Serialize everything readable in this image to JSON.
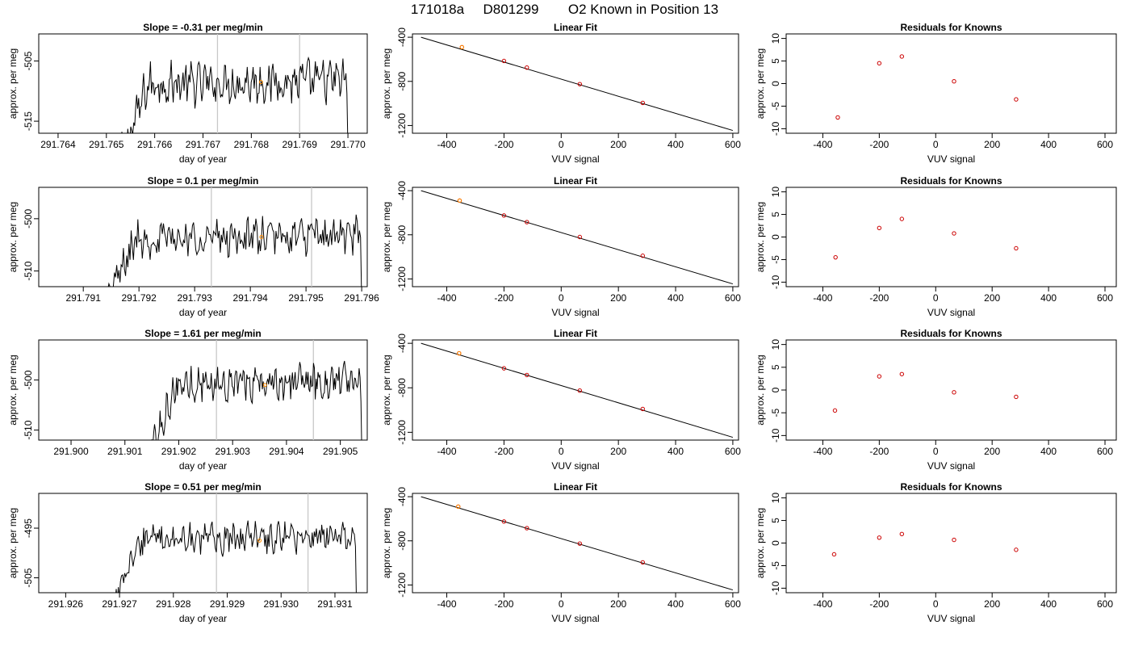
{
  "header": {
    "run": "171018a",
    "tank": "D801299",
    "description": "O2 Known in Position  13"
  },
  "colors": {
    "trace": "#000000",
    "vline": "#c8c8c8",
    "highlight": "#ff8c00",
    "points": "#cc0000",
    "axis": "#000000"
  },
  "chart_data": [
    {
      "type": "line",
      "row": 0,
      "col": 0,
      "title": "Slope =  -0.31  per meg/min",
      "xlabel": "day of year",
      "ylabel": "approx. per meg",
      "xlim": [
        291.7636,
        291.7704
      ],
      "ylim": [
        -517,
        -500.5
      ],
      "xticks": [
        291.764,
        291.765,
        291.766,
        291.767,
        291.768,
        291.769,
        291.77
      ],
      "xtick_labels": [
        "291.764",
        "291.765",
        "291.766",
        "291.767",
        "291.768",
        "291.769",
        "291.770"
      ],
      "yticks": [
        -505,
        -515
      ],
      "ytick_labels": [
        "-505",
        "-515"
      ],
      "trace_start": 291.7653,
      "trace_end": 291.77,
      "trace_level": -509,
      "trace_noise": 4,
      "vlines": [
        291.7673,
        291.769
      ],
      "highlight": {
        "x": 291.7682,
        "y": -508.5
      }
    },
    {
      "type": "scatter",
      "row": 0,
      "col": 1,
      "title": "Linear Fit",
      "xlabel": "VUV signal",
      "ylabel": "approx. per meg",
      "xlim": [
        -520,
        620
      ],
      "ylim": [
        -1270,
        -370
      ],
      "xticks": [
        -400,
        -200,
        0,
        200,
        400,
        600
      ],
      "xtick_labels": [
        "-400",
        "-200",
        "0",
        "200",
        "400",
        "600"
      ],
      "yticks": [
        -400,
        -800,
        -1200
      ],
      "ytick_labels": [
        "-400",
        "-800",
        "-1200"
      ],
      "x": [
        -347,
        -200,
        -120,
        65,
        285
      ],
      "y": [
        -490,
        -615,
        -675,
        -825,
        -995
      ],
      "fit_line": {
        "x1": -490,
        "y1": -400,
        "x2": 600,
        "y2": -1245
      },
      "highlight": {
        "x": -347,
        "y": -490
      }
    },
    {
      "type": "scatter",
      "row": 0,
      "col": 2,
      "title": "Residuals for Knowns",
      "xlabel": "VUV signal",
      "ylabel": "approx. per meg",
      "xlim": [
        -530,
        640
      ],
      "ylim": [
        -11,
        11
      ],
      "xticks": [
        -400,
        -200,
        0,
        200,
        400,
        600
      ],
      "xtick_labels": [
        "-400",
        "-200",
        "0",
        "200",
        "400",
        "600"
      ],
      "yticks": [
        10,
        5,
        0,
        -5,
        -10
      ],
      "ytick_labels": [
        "10",
        "5",
        "0",
        "-5",
        "-10"
      ],
      "x": [
        -347,
        -200,
        -120,
        65,
        285
      ],
      "y": [
        -7.5,
        4.5,
        6.0,
        0.5,
        -3.5
      ]
    },
    {
      "type": "line",
      "row": 1,
      "col": 0,
      "title": "Slope =  0.1  per meg/min",
      "xlabel": "day of year",
      "ylabel": "approx. per meg",
      "xlim": [
        291.7902,
        291.7961
      ],
      "ylim": [
        -513,
        -494
      ],
      "xticks": [
        291.791,
        291.792,
        291.793,
        291.794,
        291.795,
        291.796
      ],
      "xtick_labels": [
        "291.791",
        "291.792",
        "291.793",
        "291.794",
        "291.795",
        "291.796"
      ],
      "yticks": [
        -500,
        -510
      ],
      "ytick_labels": [
        "-500",
        "-510"
      ],
      "trace_start": 291.7914,
      "trace_end": 291.796,
      "trace_level": -504,
      "trace_noise": 4,
      "vlines": [
        291.7933,
        291.7951
      ],
      "highlight": {
        "x": 291.7942,
        "y": -503.5
      }
    },
    {
      "type": "scatter",
      "row": 1,
      "col": 1,
      "title": "Linear Fit",
      "xlabel": "VUV signal",
      "ylabel": "approx. per meg",
      "xlim": [
        -520,
        620
      ],
      "ylim": [
        -1270,
        -370
      ],
      "xticks": [
        -400,
        -200,
        0,
        200,
        400,
        600
      ],
      "xtick_labels": [
        "-400",
        "-200",
        "0",
        "200",
        "400",
        "600"
      ],
      "yticks": [
        -400,
        -800,
        -1200
      ],
      "ytick_labels": [
        "-400",
        "-800",
        "-1200"
      ],
      "x": [
        -355,
        -200,
        -120,
        65,
        285
      ],
      "y": [
        -490,
        -625,
        -685,
        -820,
        -990
      ],
      "fit_line": {
        "x1": -490,
        "y1": -400,
        "x2": 600,
        "y2": -1245
      },
      "highlight": {
        "x": -355,
        "y": -490
      }
    },
    {
      "type": "scatter",
      "row": 1,
      "col": 2,
      "title": "Residuals for Knowns",
      "xlabel": "VUV signal",
      "ylabel": "approx. per meg",
      "xlim": [
        -530,
        640
      ],
      "ylim": [
        -11,
        11
      ],
      "xticks": [
        -400,
        -200,
        0,
        200,
        400,
        600
      ],
      "xtick_labels": [
        "-400",
        "-200",
        "0",
        "200",
        "400",
        "600"
      ],
      "yticks": [
        10,
        5,
        0,
        -5,
        -10
      ],
      "ytick_labels": [
        "10",
        "5",
        "0",
        "-5",
        "-10"
      ],
      "x": [
        -355,
        -200,
        -120,
        65,
        285
      ],
      "y": [
        -4.5,
        2.0,
        4.0,
        0.8,
        -2.5
      ]
    },
    {
      "type": "line",
      "row": 2,
      "col": 0,
      "title": "Slope =  1.61  per meg/min",
      "xlabel": "day of year",
      "ylabel": "approx. per meg",
      "xlim": [
        291.8994,
        291.9055
      ],
      "ylim": [
        -512,
        -492
      ],
      "xticks": [
        291.9,
        291.901,
        291.902,
        291.903,
        291.904,
        291.905
      ],
      "xtick_labels": [
        "291.900",
        "291.901",
        "291.902",
        "291.903",
        "291.904",
        "291.905"
      ],
      "yticks": [
        -500,
        -510
      ],
      "ytick_labels": [
        "-500",
        "-510"
      ],
      "trace_start": 291.9015,
      "trace_end": 291.9054,
      "trace_level": -501,
      "trace_noise": 4,
      "vlines": [
        291.9027,
        291.9045
      ],
      "highlight": {
        "x": 291.9036,
        "y": -501
      }
    },
    {
      "type": "scatter",
      "row": 2,
      "col": 1,
      "title": "Linear Fit",
      "xlabel": "VUV signal",
      "ylabel": "approx. per meg",
      "xlim": [
        -520,
        620
      ],
      "ylim": [
        -1270,
        -370
      ],
      "xticks": [
        -400,
        -200,
        0,
        200,
        400,
        600
      ],
      "xtick_labels": [
        "-400",
        "-200",
        "0",
        "200",
        "400",
        "600"
      ],
      "yticks": [
        -400,
        -800,
        -1200
      ],
      "ytick_labels": [
        "-400",
        "-800",
        "-1200"
      ],
      "x": [
        -357,
        -200,
        -120,
        65,
        285
      ],
      "y": [
        -490,
        -625,
        -685,
        -825,
        -990
      ],
      "fit_line": {
        "x1": -490,
        "y1": -400,
        "x2": 600,
        "y2": -1245
      },
      "highlight": {
        "x": -357,
        "y": -490
      }
    },
    {
      "type": "scatter",
      "row": 2,
      "col": 2,
      "title": "Residuals for Knowns",
      "xlabel": "VUV signal",
      "ylabel": "approx. per meg",
      "xlim": [
        -530,
        640
      ],
      "ylim": [
        -11,
        11
      ],
      "xticks": [
        -400,
        -200,
        0,
        200,
        400,
        600
      ],
      "xtick_labels": [
        "-400",
        "-200",
        "0",
        "200",
        "400",
        "600"
      ],
      "yticks": [
        10,
        5,
        0,
        -5,
        -10
      ],
      "ytick_labels": [
        "10",
        "5",
        "0",
        "-5",
        "-10"
      ],
      "x": [
        -357,
        -200,
        -120,
        65,
        285
      ],
      "y": [
        -4.5,
        3.0,
        3.5,
        -0.5,
        -1.5
      ]
    },
    {
      "type": "line",
      "row": 3,
      "col": 0,
      "title": "Slope =  0.51  per meg/min",
      "xlabel": "day of year",
      "ylabel": "approx. per meg",
      "xlim": [
        291.9255,
        291.9316
      ],
      "ylim": [
        -508,
        -488
      ],
      "xticks": [
        291.926,
        291.927,
        291.928,
        291.929,
        291.93,
        291.931
      ],
      "xtick_labels": [
        "291.926",
        "291.927",
        "291.928",
        "291.929",
        "291.930",
        "291.931"
      ],
      "yticks": [
        -495,
        -505
      ],
      "ytick_labels": [
        "-495",
        "-505"
      ],
      "trace_start": 291.9269,
      "trace_end": 291.9314,
      "trace_level": -497.5,
      "trace_noise": 3.5,
      "vlines": [
        291.9288,
        291.9305
      ],
      "highlight": {
        "x": 291.9296,
        "y": -497.5
      }
    },
    {
      "type": "scatter",
      "row": 3,
      "col": 1,
      "title": "Linear Fit",
      "xlabel": "VUV signal",
      "ylabel": "approx. per meg",
      "xlim": [
        -520,
        620
      ],
      "ylim": [
        -1270,
        -370
      ],
      "xticks": [
        -400,
        -200,
        0,
        200,
        400,
        600
      ],
      "xtick_labels": [
        "-400",
        "-200",
        "0",
        "200",
        "400",
        "600"
      ],
      "yticks": [
        -400,
        -800,
        -1200
      ],
      "ytick_labels": [
        "-400",
        "-800",
        "-1200"
      ],
      "x": [
        -360,
        -200,
        -120,
        65,
        285
      ],
      "y": [
        -490,
        -625,
        -685,
        -825,
        -995
      ],
      "fit_line": {
        "x1": -490,
        "y1": -400,
        "x2": 600,
        "y2": -1245
      },
      "highlight": {
        "x": -360,
        "y": -490
      }
    },
    {
      "type": "scatter",
      "row": 3,
      "col": 2,
      "title": "Residuals for Knowns",
      "xlabel": "VUV signal",
      "ylabel": "approx. per meg",
      "xlim": [
        -530,
        640
      ],
      "ylim": [
        -11,
        11
      ],
      "xticks": [
        -400,
        -200,
        0,
        200,
        400,
        600
      ],
      "xtick_labels": [
        "-400",
        "-200",
        "0",
        "200",
        "400",
        "600"
      ],
      "yticks": [
        10,
        5,
        0,
        -5,
        -10
      ],
      "ytick_labels": [
        "10",
        "5",
        "0",
        "-5",
        "-10"
      ],
      "x": [
        -360,
        -200,
        -120,
        65,
        285
      ],
      "y": [
        -2.5,
        1.2,
        2.0,
        0.7,
        -1.5
      ]
    }
  ]
}
